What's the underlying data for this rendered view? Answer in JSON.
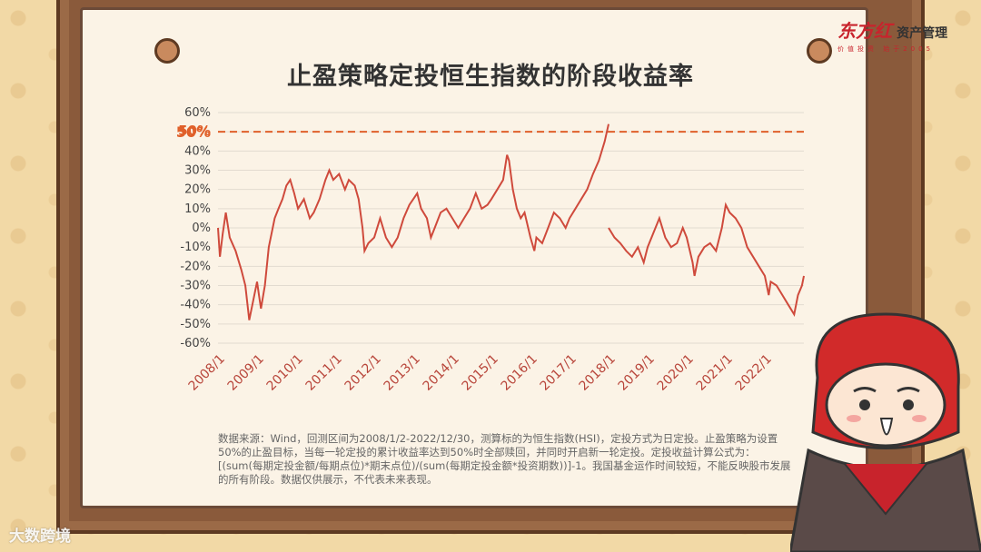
{
  "title": "止盈策略定投恒生指数的阶段收益率",
  "logo": {
    "brand": "东方红",
    "sub": "资产管理",
    "slogan": "价值投资 始于2005"
  },
  "source_note": "数据来源：Wind，回测区间为2008/1/2-2022/12/30，测算标的为恒生指数(HSI)，定投方式为日定投。止盈策略为设置50%的止盈目标，当每一轮定投的累计收益率达到50%时全部赎回，并同时开启新一轮定投。定投收益计算公式为：[(sum(每期定投金额/每期点位)*期末点位)/(sum(每期定投金额*投资期数))]-1。我国基金运作时间较短，不能反映股市发展的所有阶段。数据仅供展示，不代表未来表现。",
  "watermark": "大数跨境",
  "colors": {
    "line": "#cf4a3c",
    "reference": "#e0602a",
    "grid": "#e2dbd0"
  },
  "chart_data": {
    "type": "line",
    "x_unit": "year",
    "ylim": [
      -60,
      60
    ],
    "y_ticks": [
      "60%",
      "50%",
      "40%",
      "30%",
      "20%",
      "10%",
      "0%",
      "-10%",
      "-20%",
      "-30%",
      "-40%",
      "-50%",
      "-60%"
    ],
    "x_ticks": [
      "2008/1",
      "2009/1",
      "2010/1",
      "2011/1",
      "2012/1",
      "2013/1",
      "2014/1",
      "2015/1",
      "2016/1",
      "2017/1",
      "2018/1",
      "2019/1",
      "2020/1",
      "2021/1",
      "2022/1"
    ],
    "reference_line": {
      "value": 50,
      "label": "50%"
    },
    "grid": true,
    "series": [
      {
        "points": [
          [
            2008.0,
            0
          ],
          [
            2008.05,
            -15
          ],
          [
            2008.12,
            -3
          ],
          [
            2008.2,
            8
          ],
          [
            2008.3,
            -5
          ],
          [
            2008.45,
            -12
          ],
          [
            2008.6,
            -22
          ],
          [
            2008.7,
            -30
          ],
          [
            2008.8,
            -48
          ],
          [
            2008.9,
            -38
          ],
          [
            2009.0,
            -28
          ],
          [
            2009.05,
            -35
          ],
          [
            2009.1,
            -42
          ],
          [
            2009.2,
            -30
          ],
          [
            2009.3,
            -10
          ],
          [
            2009.45,
            5
          ],
          [
            2009.55,
            10
          ],
          [
            2009.65,
            15
          ],
          [
            2009.75,
            22
          ],
          [
            2009.85,
            25
          ],
          [
            2009.95,
            18
          ],
          [
            2010.05,
            10
          ],
          [
            2010.2,
            15
          ],
          [
            2010.35,
            5
          ],
          [
            2010.45,
            8
          ],
          [
            2010.6,
            15
          ],
          [
            2010.75,
            25
          ],
          [
            2010.85,
            30
          ],
          [
            2010.95,
            25
          ],
          [
            2011.1,
            28
          ],
          [
            2011.25,
            20
          ],
          [
            2011.35,
            25
          ],
          [
            2011.5,
            22
          ],
          [
            2011.6,
            15
          ],
          [
            2011.7,
            0
          ],
          [
            2011.75,
            -12
          ],
          [
            2011.85,
            -8
          ],
          [
            2012.0,
            -5
          ],
          [
            2012.15,
            5
          ],
          [
            2012.3,
            -5
          ],
          [
            2012.45,
            -10
          ],
          [
            2012.6,
            -5
          ],
          [
            2012.75,
            5
          ],
          [
            2012.9,
            12
          ],
          [
            2013.0,
            15
          ],
          [
            2013.1,
            18
          ],
          [
            2013.2,
            10
          ],
          [
            2013.35,
            5
          ],
          [
            2013.45,
            -5
          ],
          [
            2013.55,
            0
          ],
          [
            2013.7,
            8
          ],
          [
            2013.85,
            10
          ],
          [
            2014.0,
            5
          ],
          [
            2014.15,
            0
          ],
          [
            2014.3,
            5
          ],
          [
            2014.45,
            10
          ],
          [
            2014.6,
            18
          ],
          [
            2014.75,
            10
          ],
          [
            2014.9,
            12
          ],
          [
            2015.0,
            15
          ],
          [
            2015.15,
            20
          ],
          [
            2015.3,
            25
          ],
          [
            2015.4,
            38
          ],
          [
            2015.45,
            35
          ],
          [
            2015.55,
            20
          ],
          [
            2015.65,
            10
          ],
          [
            2015.75,
            5
          ],
          [
            2015.85,
            8
          ],
          [
            2016.0,
            -5
          ],
          [
            2016.1,
            -12
          ],
          [
            2016.15,
            -5
          ],
          [
            2016.3,
            -8
          ],
          [
            2016.45,
            0
          ],
          [
            2016.6,
            8
          ],
          [
            2016.75,
            5
          ],
          [
            2016.9,
            0
          ],
          [
            2017.0,
            5
          ],
          [
            2017.15,
            10
          ],
          [
            2017.3,
            15
          ],
          [
            2017.45,
            20
          ],
          [
            2017.6,
            28
          ],
          [
            2017.75,
            35
          ],
          [
            2017.9,
            45
          ],
          [
            2018.0,
            54
          ],
          [
            2018.0,
            0
          ],
          [
            2018.15,
            -5
          ],
          [
            2018.3,
            -8
          ],
          [
            2018.45,
            -12
          ],
          [
            2018.6,
            -15
          ],
          [
            2018.75,
            -10
          ],
          [
            2018.9,
            -18
          ],
          [
            2019.0,
            -10
          ],
          [
            2019.2,
            0
          ],
          [
            2019.3,
            5
          ],
          [
            2019.45,
            -5
          ],
          [
            2019.6,
            -10
          ],
          [
            2019.75,
            -8
          ],
          [
            2019.9,
            0
          ],
          [
            2020.0,
            -5
          ],
          [
            2020.15,
            -18
          ],
          [
            2020.2,
            -25
          ],
          [
            2020.3,
            -15
          ],
          [
            2020.45,
            -10
          ],
          [
            2020.6,
            -8
          ],
          [
            2020.75,
            -12
          ],
          [
            2020.9,
            0
          ],
          [
            2021.0,
            12
          ],
          [
            2021.1,
            8
          ],
          [
            2021.25,
            5
          ],
          [
            2021.4,
            0
          ],
          [
            2021.55,
            -10
          ],
          [
            2021.7,
            -15
          ],
          [
            2021.85,
            -20
          ],
          [
            2022.0,
            -25
          ],
          [
            2022.1,
            -35
          ],
          [
            2022.15,
            -28
          ],
          [
            2022.3,
            -30
          ],
          [
            2022.45,
            -35
          ],
          [
            2022.6,
            -40
          ],
          [
            2022.75,
            -45
          ],
          [
            2022.85,
            -35
          ],
          [
            2022.95,
            -30
          ],
          [
            2023.0,
            -25
          ]
        ]
      }
    ]
  }
}
